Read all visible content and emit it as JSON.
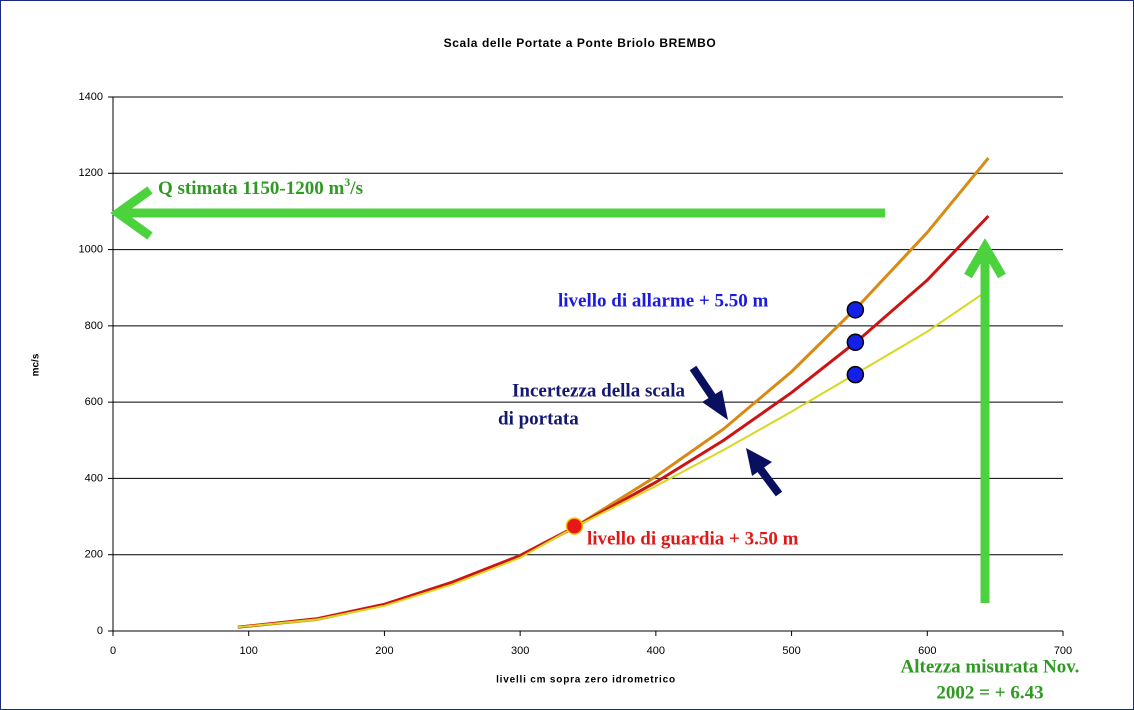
{
  "chart_data": {
    "type": "line",
    "title": "Scala delle Portate a Ponte Briolo BREMBO",
    "x_label": "livelli cm sopra zero idrometrico",
    "y_label": "mc/s",
    "x": [
      92,
      150,
      200,
      250,
      300,
      340,
      400,
      450,
      500,
      550,
      600,
      645
    ],
    "series": [
      {
        "color": "#d88a12",
        "values": [
          10,
          30,
          68,
          125,
          195,
          272,
          405,
          530,
          680,
          855,
          1045,
          1240
        ]
      },
      {
        "color": "#cc1414",
        "values": [
          10,
          32,
          70,
          128,
          198,
          272,
          390,
          500,
          625,
          765,
          920,
          1088
        ]
      },
      {
        "color": "#d8d820",
        "values": [
          10,
          30,
          66,
          122,
          192,
          272,
          380,
          475,
          575,
          680,
          785,
          894
        ]
      }
    ],
    "points": [
      {
        "color": "#e81818",
        "x": 340,
        "y": 275
      },
      {
        "color": "#1420e8",
        "x": 547,
        "y": 842
      },
      {
        "color": "#1420e8",
        "x": 547,
        "y": 757
      },
      {
        "color": "#1420e8",
        "x": 547,
        "y": 672
      }
    ],
    "xlim": [
      0,
      700
    ],
    "xticks": [
      0,
      100,
      200,
      300,
      400,
      500,
      600,
      700
    ],
    "ylim": [
      0,
      1400
    ],
    "yticks": [
      0,
      200,
      400,
      600,
      800,
      1000,
      1200,
      1400
    ],
    "grid": true,
    "annotations": {
      "q_text": "Q stimata 1150-1200 m",
      "q_sup": "3",
      "q_unit": "/s",
      "allarme": "livello di allarme + 5.50 m",
      "incertezza": [
        "Incertezza della scala",
        "di portata"
      ],
      "guardia": "livello di guardia + 3.50 m",
      "altezza": [
        "Altezza misurata Nov.",
        "2002 = + 6.43"
      ]
    }
  }
}
